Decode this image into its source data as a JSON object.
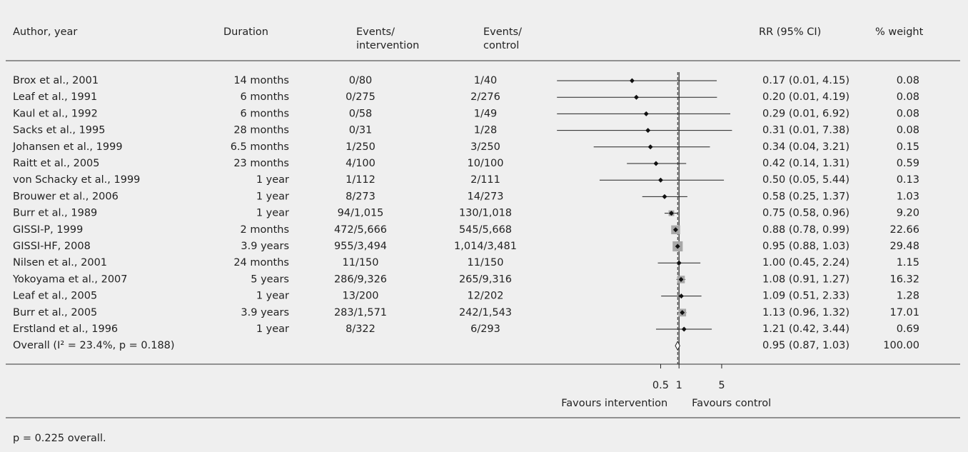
{
  "chart_data": {
    "type": "forest",
    "headers": {
      "author": [
        "Author, year"
      ],
      "duration": [
        "Duration"
      ],
      "events_intervention": [
        "Events/",
        "intervention"
      ],
      "events_control": [
        "Events/",
        "control"
      ],
      "rr": [
        "RR (95% CI)"
      ],
      "weight": [
        "% weight"
      ]
    },
    "rows": [
      {
        "author": "Brox et al., 2001",
        "duration": "14 months",
        "events_intervention": "0/80",
        "events_control": "1/40",
        "rr": 0.17,
        "ci": [
          0.01,
          4.15
        ],
        "rr_label": "0.17 (0.01, 4.15)",
        "weight": 0.08,
        "weight_label": "0.08"
      },
      {
        "author": "Leaf et al., 1991",
        "duration": "6 months",
        "events_intervention": "0/275",
        "events_control": "2/276",
        "rr": 0.2,
        "ci": [
          0.01,
          4.19
        ],
        "rr_label": "0.20 (0.01, 4.19)",
        "weight": 0.08,
        "weight_label": "0.08"
      },
      {
        "author": "Kaul et al., 1992",
        "duration": "6 months",
        "events_intervention": "0/58",
        "events_control": "1/49",
        "rr": 0.29,
        "ci": [
          0.01,
          6.92
        ],
        "rr_label": "0.29 (0.01, 6.92)",
        "weight": 0.08,
        "weight_label": "0.08"
      },
      {
        "author": "Sacks et al., 1995",
        "duration": "28 months",
        "events_intervention": "0/31",
        "events_control": "1/28",
        "rr": 0.31,
        "ci": [
          0.01,
          7.38
        ],
        "rr_label": "0.31 (0.01, 7.38)",
        "weight": 0.08,
        "weight_label": "0.08"
      },
      {
        "author": "Johansen et al., 1999",
        "duration": "6.5 months",
        "events_intervention": "1/250",
        "events_control": "3/250",
        "rr": 0.34,
        "ci": [
          0.04,
          3.21
        ],
        "rr_label": "0.34 (0.04, 3.21)",
        "weight": 0.15,
        "weight_label": "0.15"
      },
      {
        "author": "Raitt et al., 2005",
        "duration": "23 months",
        "events_intervention": "4/100",
        "events_control": "10/100",
        "rr": 0.42,
        "ci": [
          0.14,
          1.31
        ],
        "rr_label": "0.42 (0.14, 1.31)",
        "weight": 0.59,
        "weight_label": "0.59"
      },
      {
        "author": "von Schacky et al., 1999",
        "duration": "1 year",
        "events_intervention": "1/112",
        "events_control": "2/111",
        "rr": 0.5,
        "ci": [
          0.05,
          5.44
        ],
        "rr_label": "0.50 (0.05, 5.44)",
        "weight": 0.13,
        "weight_label": "0.13"
      },
      {
        "author": "Brouwer et al., 2006",
        "duration": "1 year",
        "events_intervention": "8/273",
        "events_control": "14/273",
        "rr": 0.58,
        "ci": [
          0.25,
          1.37
        ],
        "rr_label": "0.58 (0.25, 1.37)",
        "weight": 1.03,
        "weight_label": "1.03"
      },
      {
        "author": "Burr et al., 1989",
        "duration": "1 year",
        "events_intervention": "94/1,015",
        "events_control": "130/1,018",
        "rr": 0.75,
        "ci": [
          0.58,
          0.96
        ],
        "rr_label": "0.75 (0.58, 0.96)",
        "weight": 9.2,
        "weight_label": "9.20"
      },
      {
        "author": "GISSI-P, 1999",
        "duration": "2 months",
        "events_intervention": "472/5,666",
        "events_control": "545/5,668",
        "rr": 0.88,
        "ci": [
          0.78,
          0.99
        ],
        "rr_label": "0.88 (0.78, 0.99)",
        "weight": 22.66,
        "weight_label": "22.66"
      },
      {
        "author": "GISSI-HF, 2008",
        "duration": "3.9 years",
        "events_intervention": "955/3,494",
        "events_control": "1,014/3,481",
        "rr": 0.95,
        "ci": [
          0.88,
          1.03
        ],
        "rr_label": "0.95 (0.88, 1.03)",
        "weight": 29.48,
        "weight_label": "29.48"
      },
      {
        "author": "Nilsen et al., 2001",
        "duration": "24 months",
        "events_intervention": "11/150",
        "events_control": "11/150",
        "rr": 1.0,
        "ci": [
          0.45,
          2.24
        ],
        "rr_label": "1.00 (0.45, 2.24)",
        "weight": 1.15,
        "weight_label": "1.15"
      },
      {
        "author": "Yokoyama et al., 2007",
        "duration": "5 years",
        "events_intervention": "286/9,326",
        "events_control": "265/9,316",
        "rr": 1.08,
        "ci": [
          0.91,
          1.27
        ],
        "rr_label": "1.08 (0.91, 1.27)",
        "weight": 16.32,
        "weight_label": "16.32"
      },
      {
        "author": "Leaf et al., 2005",
        "duration": "1 year",
        "events_intervention": "13/200",
        "events_control": "12/202",
        "rr": 1.09,
        "ci": [
          0.51,
          2.33
        ],
        "rr_label": "1.09 (0.51, 2.33)",
        "weight": 1.28,
        "weight_label": "1.28"
      },
      {
        "author": "Burr et al., 2005",
        "duration": "3.9 years",
        "events_intervention": "283/1,571",
        "events_control": "242/1,543",
        "rr": 1.13,
        "ci": [
          0.96,
          1.32
        ],
        "rr_label": "1.13 (0.96, 1.32)",
        "weight": 17.01,
        "weight_label": "17.01"
      },
      {
        "author": "Erstland et al., 1996",
        "duration": "1 year",
        "events_intervention": "8/322",
        "events_control": "6/293",
        "rr": 1.21,
        "ci": [
          0.42,
          3.44
        ],
        "rr_label": "1.21 (0.42, 3.44)",
        "weight": 0.69,
        "weight_label": "0.69"
      }
    ],
    "overall": {
      "label": "Overall (I² = 23.4%, p = 0.188)",
      "rr": 0.95,
      "ci": [
        0.87,
        1.03
      ],
      "rr_label": "0.95 (0.87, 1.03)",
      "weight_label": "100.00"
    },
    "xlim": [
      0.0072,
      7.5
    ],
    "xticks": [
      0.5,
      1,
      5
    ],
    "log_x": true,
    "xlabel_left": "Favours intervention",
    "xlabel_right": "Favours control",
    "footnote": "p = 0.225 overall."
  }
}
